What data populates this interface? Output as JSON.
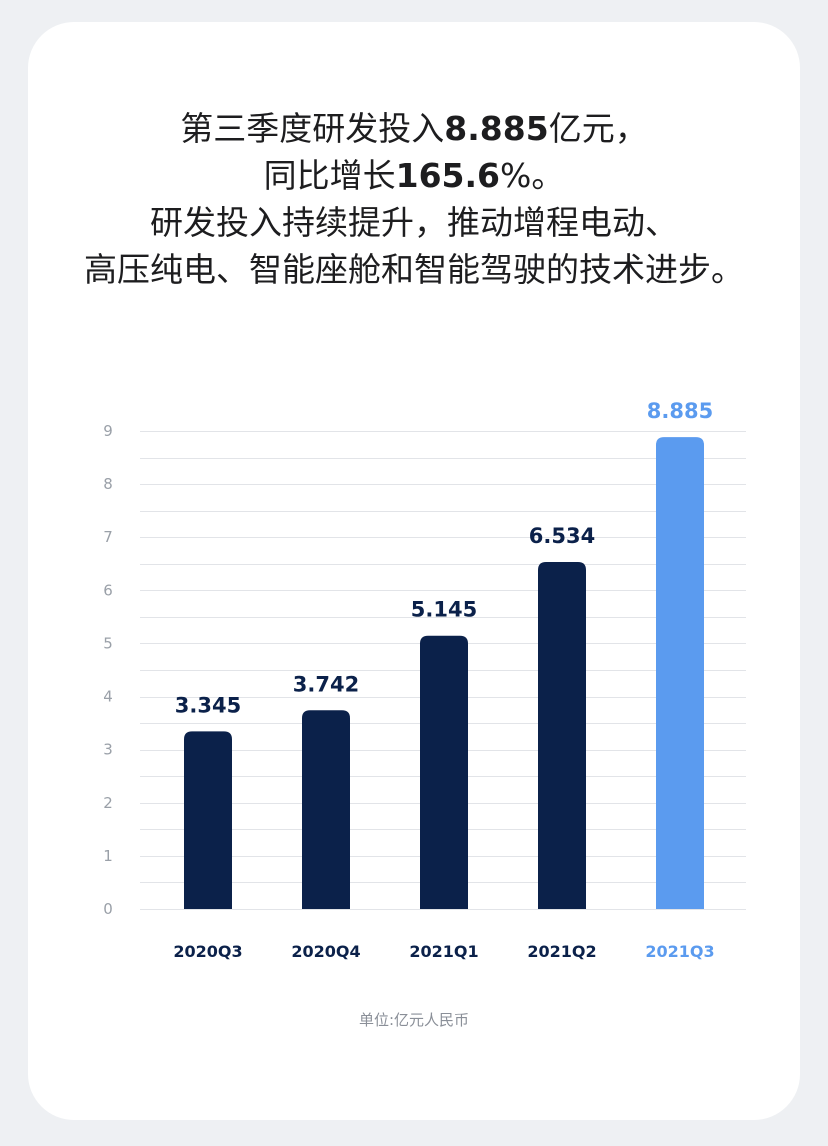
{
  "headline": {
    "line1_pre": "第三季度研发投入",
    "line1_value": "8.885",
    "line1_post": "亿元，",
    "line2_pre": "同比增长",
    "line2_value": "165.6",
    "line2_post": "%。",
    "line3": "研发投入持续提升，推动增程电动、",
    "line4": "高压纯电、智能座舱和智能驾驶的技术进步。"
  },
  "unit_note": "单位:亿元人民币",
  "colors": {
    "bar_default": "#0b214a",
    "bar_highlight": "#5b9bef",
    "label_default": "#0b214a",
    "label_highlight": "#5b9bef",
    "grid": "#e2e4e8",
    "tick": "#9aa0a8"
  },
  "chart_data": {
    "type": "bar",
    "categories": [
      "2020Q3",
      "2020Q4",
      "2021Q1",
      "2021Q2",
      "2021Q3"
    ],
    "values": [
      3.345,
      3.742,
      5.145,
      6.534,
      8.885
    ],
    "value_labels": [
      "3.345",
      "3.742",
      "5.145",
      "6.534",
      "8.885"
    ],
    "highlight_index": 4,
    "ylim": [
      0,
      9
    ],
    "yticks": [
      0,
      1,
      2,
      3,
      4,
      5,
      6,
      7,
      8,
      9
    ],
    "minor_grid_step": 0.5,
    "grid": true,
    "title": "",
    "xlabel": "",
    "ylabel": ""
  }
}
